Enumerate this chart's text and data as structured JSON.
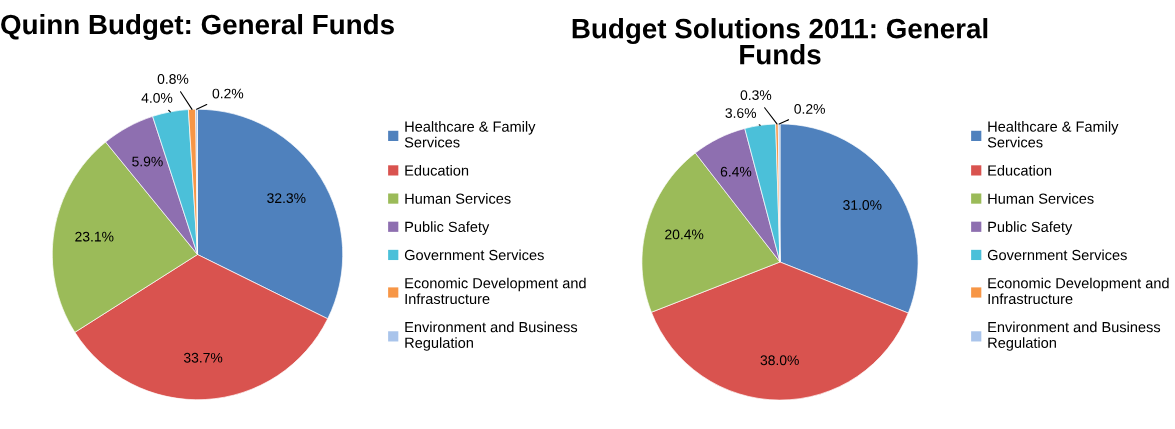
{
  "chart_data": [
    {
      "type": "pie",
      "title": "Quinn Budget: General Funds",
      "categories": [
        "Healthcare & Family Services",
        "Education",
        "Human Services",
        "Public Safety",
        "Government Services",
        "Economic Development and Infrastructure",
        "Environment and Business Regulation"
      ],
      "values": [
        32.3,
        33.7,
        23.1,
        5.9,
        4.0,
        0.8,
        0.2
      ],
      "value_labels": [
        "32.3%",
        "33.7%",
        "23.1%",
        "5.9%",
        "4.0%",
        "0.8%",
        "0.2%"
      ],
      "colors": [
        "#4f81bd",
        "#d9534f",
        "#9bbb59",
        "#8e6fb0",
        "#4bc0d9",
        "#f79646",
        "#a9c4eb"
      ],
      "legend": "right"
    },
    {
      "type": "pie",
      "title": "Budget Solutions 2011: General Funds",
      "categories": [
        "Healthcare & Family Services",
        "Education",
        "Human Services",
        "Public Safety",
        "Government Services",
        "Economic Development and Infrastructure",
        "Environment and Business Regulation"
      ],
      "values": [
        31.0,
        38.0,
        20.4,
        6.4,
        3.6,
        0.3,
        0.2
      ],
      "value_labels": [
        "31.0%",
        "38.0%",
        "20.4%",
        "6.4%",
        "3.6%",
        "0.3%",
        "0.2%"
      ],
      "colors": [
        "#4f81bd",
        "#d9534f",
        "#9bbb59",
        "#8e6fb0",
        "#4bc0d9",
        "#f79646",
        "#a9c4eb"
      ],
      "legend": "right"
    }
  ]
}
